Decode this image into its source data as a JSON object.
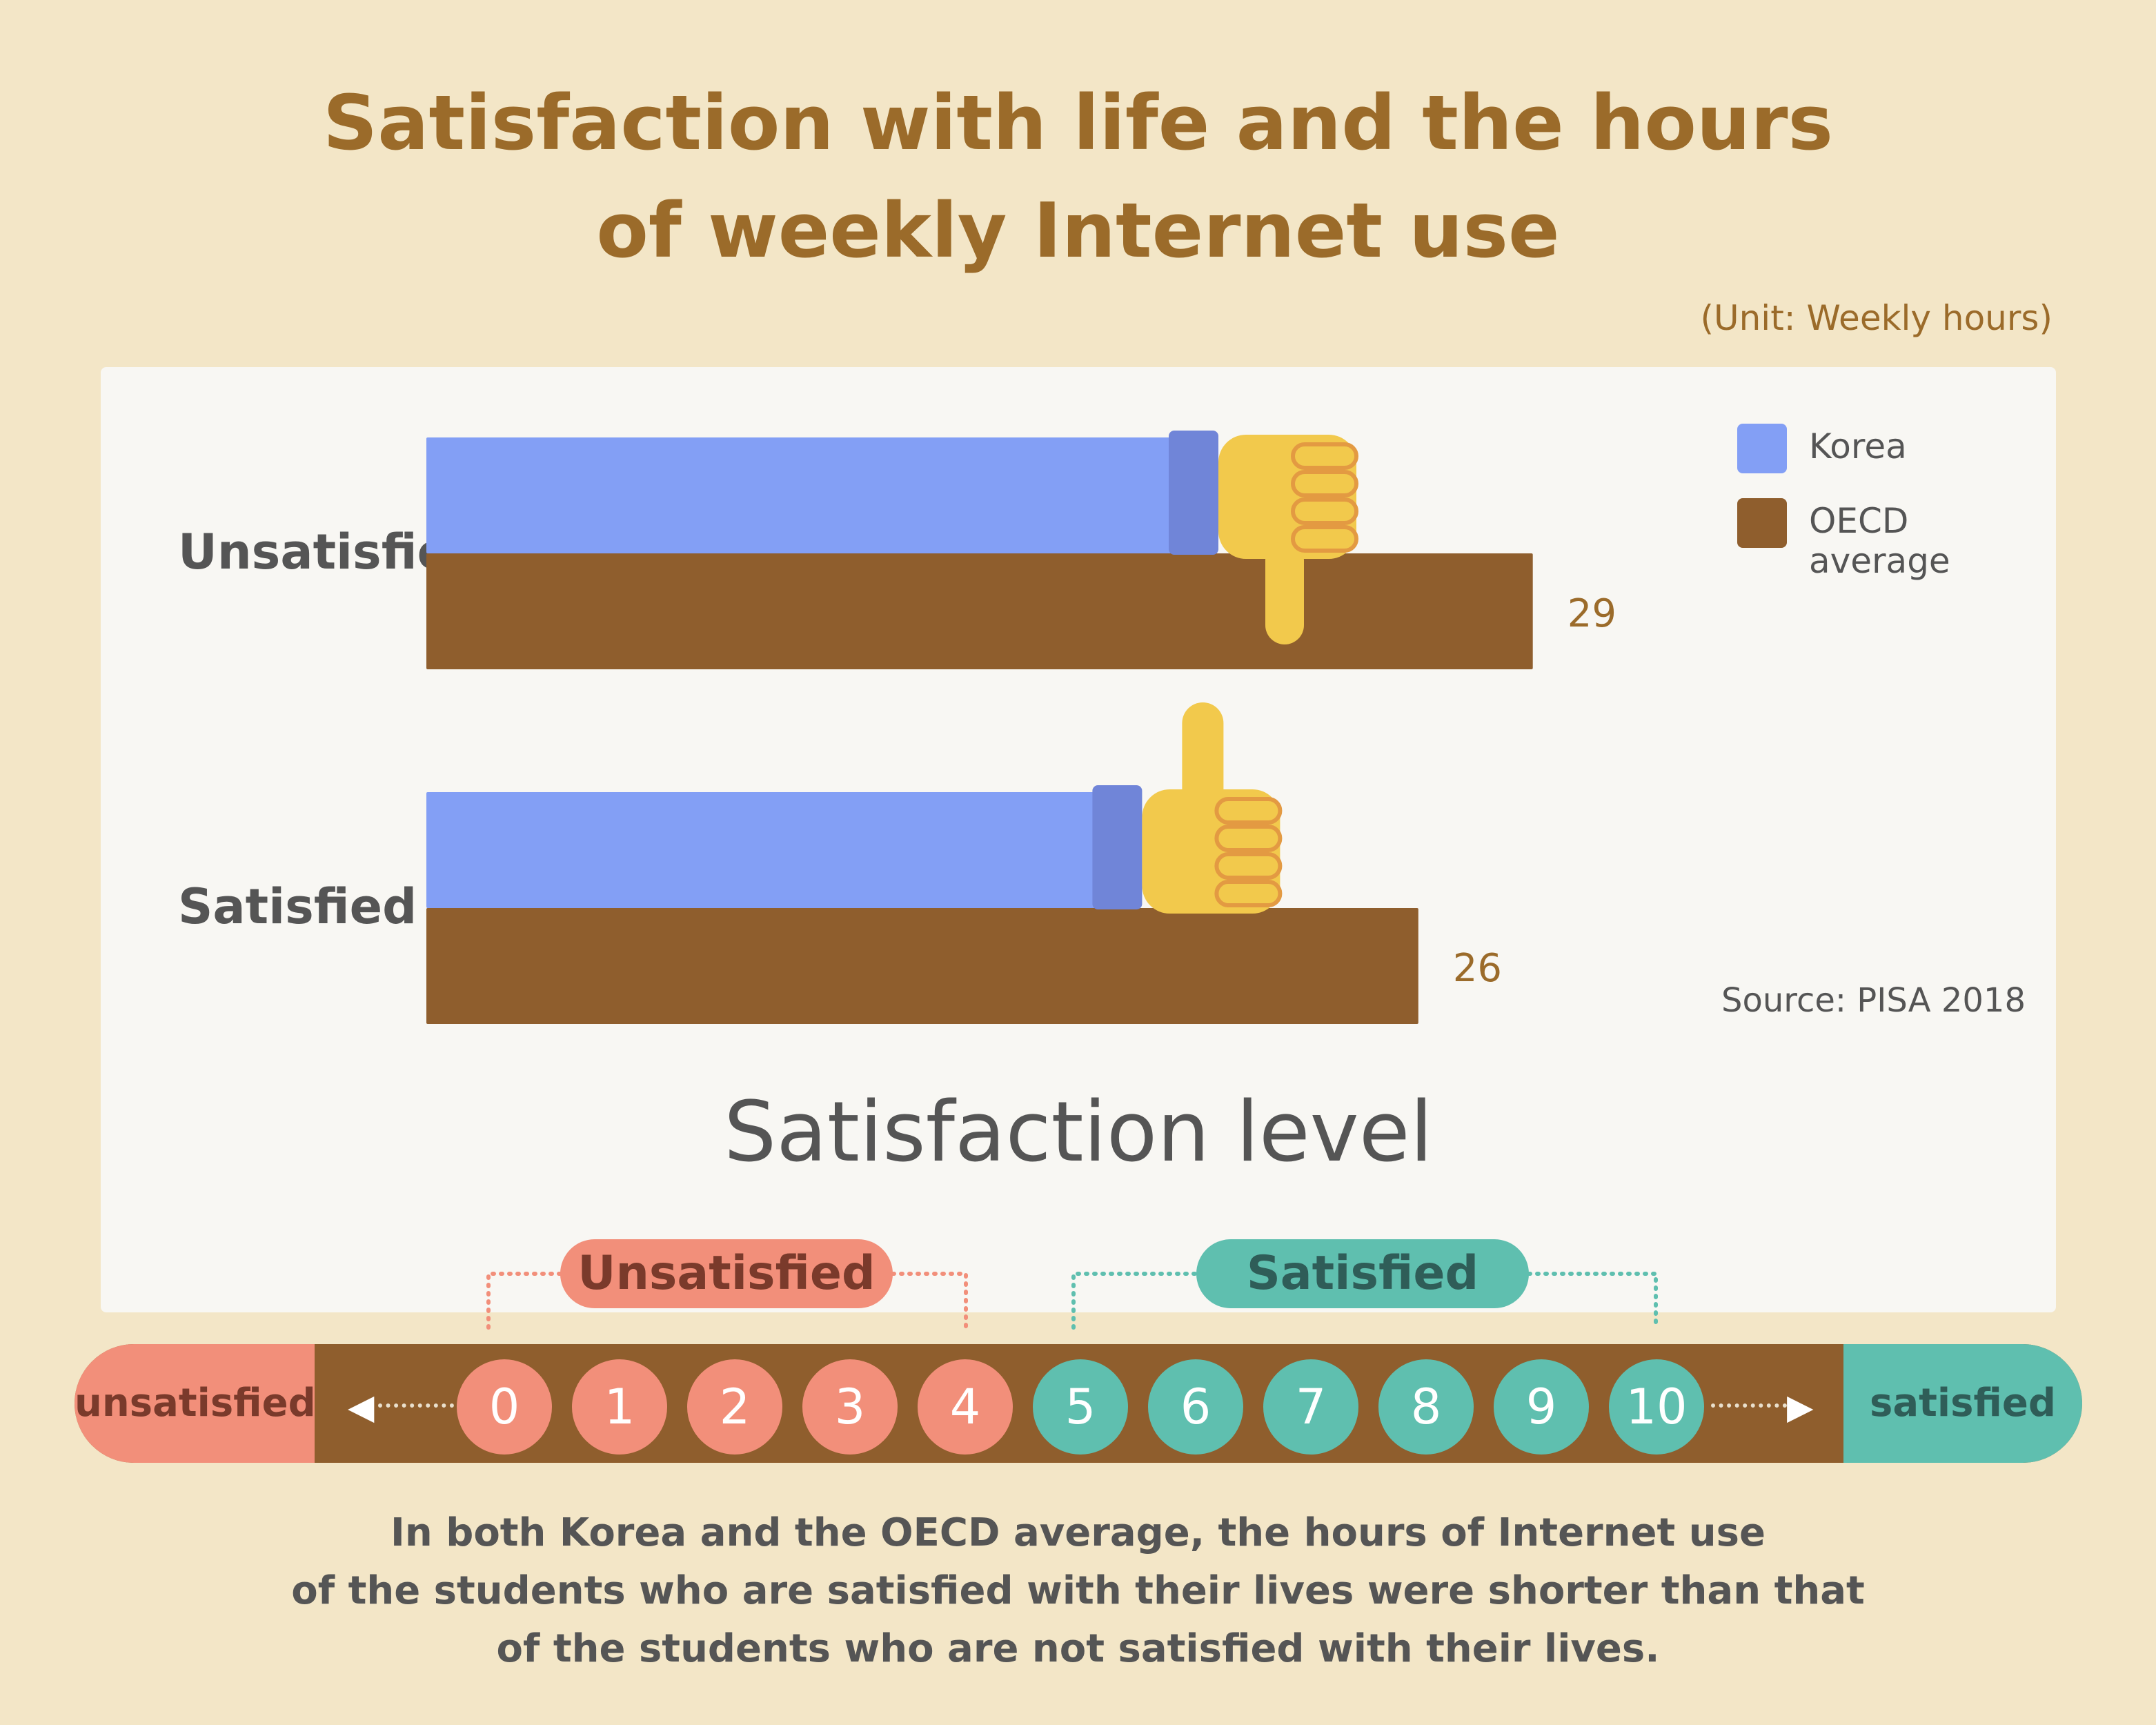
{
  "title_line1": "Satisfaction with life and the hours",
  "title_line2": "of weekly Internet use",
  "unit": "(Unit: Weekly hours)",
  "source": "Source: PISA 2018",
  "chart_data": {
    "type": "bar",
    "orientation": "horizontal",
    "categories": [
      "Unsatisfied",
      "Satisfied"
    ],
    "series": [
      {
        "name": "Korea",
        "values": [
          20,
          18
        ],
        "color": "#839ff5"
      },
      {
        "name": "OECD average",
        "values": [
          29,
          26
        ],
        "color": "#8f5e2d"
      }
    ],
    "value_labels": {
      "Korea": [
        "20",
        "18"
      ],
      "OECD average": [
        "29",
        "26"
      ]
    },
    "legend_position": "top-right",
    "grid": false,
    "icons": [
      "thumbs-down-icon",
      "thumbs-up-icon"
    ]
  },
  "scale": {
    "title": "Satisfaction level",
    "unsatisfied_group_label": "Unsatisfied",
    "satisfied_group_label": "Satisfied",
    "left_end_label": "unsatisfied",
    "right_end_label": "satisfied",
    "numbers": [
      "0",
      "1",
      "2",
      "3",
      "4",
      "5",
      "6",
      "7",
      "8",
      "9",
      "10"
    ],
    "colors": {
      "unsatisfied": "#f28f7a",
      "satisfied": "#5fbfaf",
      "bar": "#8f5e2d"
    }
  },
  "footer_line1": "In both Korea and the OECD average, the hours of Internet use",
  "footer_line2": "of the students who are satisfied with  their lives were shorter than that",
  "footer_line3": "of the students who are not satisfied with their lives."
}
